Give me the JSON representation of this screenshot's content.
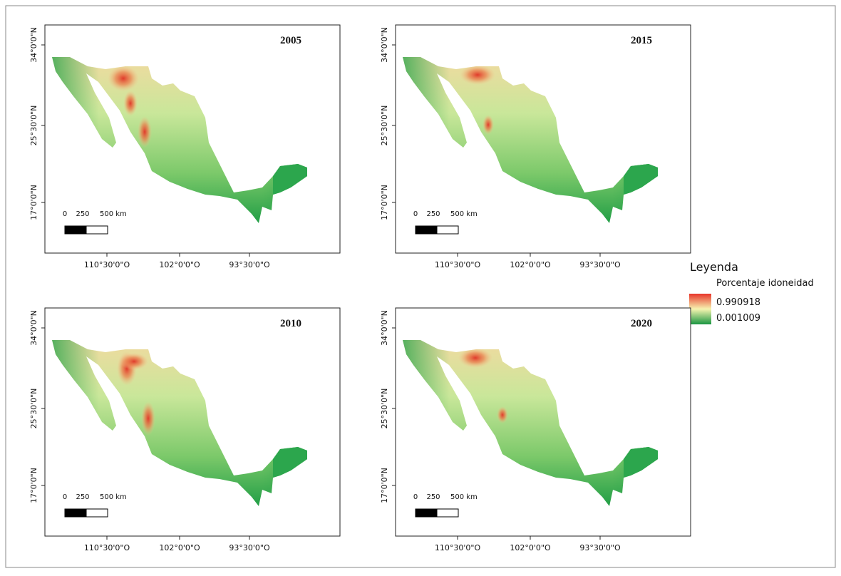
{
  "panels": [
    {
      "year": "2005"
    },
    {
      "year": "2015"
    },
    {
      "year": "2010"
    },
    {
      "year": "2020"
    }
  ],
  "axes": {
    "lat_labels": [
      "34°0'0\"N",
      "25°30'0\"N",
      "17°0'0\"N"
    ],
    "lon_labels": [
      "110°30'0\"O",
      "102°0'0\"O",
      "93°30'0\"O"
    ]
  },
  "scale_bar": {
    "labels": [
      "0",
      "250",
      "500 km"
    ]
  },
  "legend": {
    "title": "Leyenda",
    "subtitle": "Porcentaje idoneidad",
    "max": "0.990918",
    "min": "0.001009"
  }
}
